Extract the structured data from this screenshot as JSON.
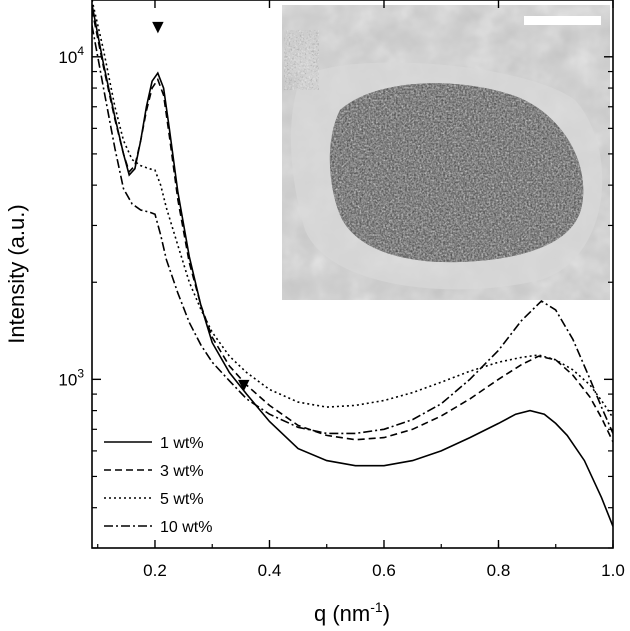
{
  "chart_data": {
    "type": "line",
    "title": "",
    "xlabel": "q (nm",
    "xlabel_sup": "-1",
    "xlabel_close": ")",
    "ylabel": "Intensity (a.u.)",
    "xlim": [
      0.09,
      1.0
    ],
    "ylim": [
      300,
      15000
    ],
    "y_scale": "log",
    "x_ticks": [
      0.2,
      0.4,
      0.6,
      0.8,
      1.0
    ],
    "x_tick_labels": [
      "0.2",
      "0.4",
      "0.6",
      "0.8",
      "1.0"
    ],
    "y_tick_labels": [
      {
        "value": 1000,
        "base": "10",
        "exp": "3"
      },
      {
        "value": 10000,
        "base": "10",
        "exp": "4"
      }
    ],
    "grid": false,
    "legend_position": "bottom-left",
    "markers": [
      {
        "symbol": "▼",
        "x": 0.205,
        "y": 12000
      },
      {
        "symbol": "▼",
        "x": 0.355,
        "y": 930
      }
    ],
    "inset": {
      "description": "micrograph",
      "scale_bar": true
    },
    "series": [
      {
        "name": "1 wt%",
        "dash": "solid",
        "points": [
          [
            0.09,
            14500
          ],
          [
            0.11,
            9500
          ],
          [
            0.13,
            6500
          ],
          [
            0.145,
            5000
          ],
          [
            0.155,
            4300
          ],
          [
            0.165,
            4500
          ],
          [
            0.175,
            5500
          ],
          [
            0.185,
            7000
          ],
          [
            0.195,
            8400
          ],
          [
            0.205,
            8900
          ],
          [
            0.215,
            8000
          ],
          [
            0.225,
            6000
          ],
          [
            0.24,
            3800
          ],
          [
            0.26,
            2400
          ],
          [
            0.28,
            1700
          ],
          [
            0.3,
            1300
          ],
          [
            0.33,
            1050
          ],
          [
            0.36,
            900
          ],
          [
            0.4,
            740
          ],
          [
            0.45,
            610
          ],
          [
            0.5,
            560
          ],
          [
            0.55,
            540
          ],
          [
            0.6,
            540
          ],
          [
            0.65,
            560
          ],
          [
            0.7,
            600
          ],
          [
            0.75,
            660
          ],
          [
            0.8,
            730
          ],
          [
            0.83,
            780
          ],
          [
            0.855,
            800
          ],
          [
            0.88,
            780
          ],
          [
            0.9,
            730
          ],
          [
            0.92,
            670
          ],
          [
            0.95,
            560
          ],
          [
            0.98,
            430
          ],
          [
            1.0,
            350
          ]
        ]
      },
      {
        "name": "3 wt%",
        "dash": "dashed",
        "points": [
          [
            0.09,
            14000
          ],
          [
            0.11,
            9300
          ],
          [
            0.13,
            6400
          ],
          [
            0.145,
            5000
          ],
          [
            0.155,
            4400
          ],
          [
            0.165,
            4600
          ],
          [
            0.175,
            5500
          ],
          [
            0.185,
            6800
          ],
          [
            0.195,
            8000
          ],
          [
            0.205,
            8500
          ],
          [
            0.215,
            7600
          ],
          [
            0.225,
            5700
          ],
          [
            0.24,
            3600
          ],
          [
            0.26,
            2300
          ],
          [
            0.28,
            1700
          ],
          [
            0.3,
            1350
          ],
          [
            0.33,
            1100
          ],
          [
            0.36,
            960
          ],
          [
            0.4,
            830
          ],
          [
            0.45,
            720
          ],
          [
            0.5,
            670
          ],
          [
            0.55,
            650
          ],
          [
            0.6,
            660
          ],
          [
            0.65,
            700
          ],
          [
            0.7,
            770
          ],
          [
            0.75,
            870
          ],
          [
            0.8,
            1000
          ],
          [
            0.84,
            1110
          ],
          [
            0.87,
            1180
          ],
          [
            0.9,
            1150
          ],
          [
            0.93,
            1030
          ],
          [
            0.96,
            880
          ],
          [
            0.98,
            760
          ],
          [
            1.0,
            640
          ]
        ]
      },
      {
        "name": "5 wt%",
        "dash": "dotted",
        "points": [
          [
            0.09,
            15000
          ],
          [
            0.11,
            10500
          ],
          [
            0.13,
            7000
          ],
          [
            0.145,
            5500
          ],
          [
            0.16,
            4800
          ],
          [
            0.175,
            4600
          ],
          [
            0.19,
            4500
          ],
          [
            0.2,
            4450
          ],
          [
            0.21,
            4000
          ],
          [
            0.22,
            3400
          ],
          [
            0.24,
            2600
          ],
          [
            0.26,
            2000
          ],
          [
            0.28,
            1650
          ],
          [
            0.3,
            1400
          ],
          [
            0.33,
            1180
          ],
          [
            0.36,
            1050
          ],
          [
            0.4,
            930
          ],
          [
            0.45,
            850
          ],
          [
            0.5,
            820
          ],
          [
            0.55,
            830
          ],
          [
            0.6,
            860
          ],
          [
            0.65,
            910
          ],
          [
            0.7,
            980
          ],
          [
            0.75,
            1060
          ],
          [
            0.8,
            1130
          ],
          [
            0.84,
            1170
          ],
          [
            0.87,
            1190
          ],
          [
            0.9,
            1150
          ],
          [
            0.93,
            1070
          ],
          [
            0.96,
            960
          ],
          [
            0.98,
            860
          ],
          [
            1.0,
            760
          ]
        ]
      },
      {
        "name": "10 wt%",
        "dash": "dashdot",
        "points": [
          [
            0.09,
            12500
          ],
          [
            0.11,
            8000
          ],
          [
            0.13,
            5200
          ],
          [
            0.145,
            3900
          ],
          [
            0.16,
            3500
          ],
          [
            0.175,
            3350
          ],
          [
            0.19,
            3300
          ],
          [
            0.2,
            3250
          ],
          [
            0.21,
            2800
          ],
          [
            0.22,
            2350
          ],
          [
            0.24,
            1850
          ],
          [
            0.26,
            1500
          ],
          [
            0.28,
            1280
          ],
          [
            0.3,
            1130
          ],
          [
            0.33,
            990
          ],
          [
            0.36,
            870
          ],
          [
            0.4,
            780
          ],
          [
            0.45,
            710
          ],
          [
            0.5,
            680
          ],
          [
            0.55,
            680
          ],
          [
            0.6,
            700
          ],
          [
            0.65,
            750
          ],
          [
            0.7,
            840
          ],
          [
            0.75,
            1000
          ],
          [
            0.8,
            1230
          ],
          [
            0.84,
            1520
          ],
          [
            0.875,
            1750
          ],
          [
            0.9,
            1640
          ],
          [
            0.93,
            1330
          ],
          [
            0.96,
            1000
          ],
          [
            0.98,
            820
          ],
          [
            1.0,
            680
          ]
        ]
      }
    ]
  }
}
